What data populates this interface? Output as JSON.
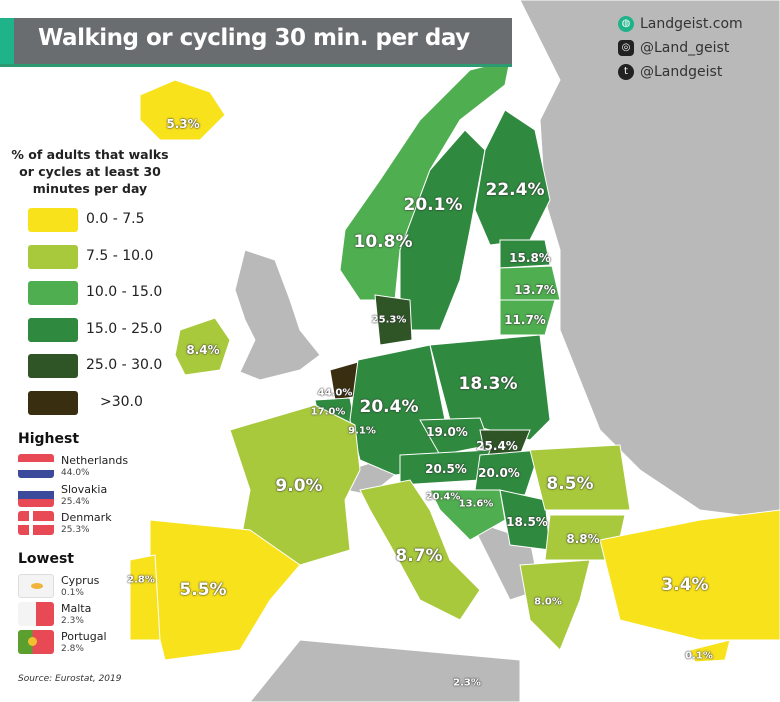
{
  "title": "Walking or cycling 30 min. per day",
  "social": [
    {
      "icon": "globe-icon",
      "label": "Landgeist.com"
    },
    {
      "icon": "instagram-icon",
      "label": "@Land_geist"
    },
    {
      "icon": "twitter-icon",
      "label": "@Landgeist"
    }
  ],
  "legend": {
    "title": "% of adults that walks or cycles at least 30 minutes per day",
    "items": [
      {
        "label": "0.0  -  7.5",
        "color": "#f8e21c"
      },
      {
        "label": "7.5  - 10.0",
        "color": "#a9c93c"
      },
      {
        "label": "10.0 - 15.0",
        "color": "#4fae50"
      },
      {
        "label": "15.0 - 25.0",
        "color": "#2f8a3f"
      },
      {
        "label": "25.0 - 30.0",
        "color": "#2f5527"
      },
      {
        "label": ">30.0",
        "color": "#3a2e10"
      }
    ]
  },
  "highest": {
    "title": "Highest",
    "items": [
      {
        "country": "Netherlands",
        "value": "44.0%"
      },
      {
        "country": "Slovakia",
        "value": "25.4%"
      },
      {
        "country": "Denmark",
        "value": "25.3%"
      }
    ]
  },
  "lowest": {
    "title": "Lowest",
    "items": [
      {
        "country": "Cyprus",
        "value": "0.1%"
      },
      {
        "country": "Malta",
        "value": "2.3%"
      },
      {
        "country": "Portugal",
        "value": "2.8%"
      }
    ]
  },
  "source": "Source: Eurostat, 2019",
  "map_values": {
    "iceland": "5.3%",
    "norway": "10.8%",
    "sweden": "20.1%",
    "finland": "22.4%",
    "estonia": "15.8%",
    "latvia": "13.7%",
    "lithuania": "11.7%",
    "denmark": "25.3%",
    "ireland": "8.4%",
    "netherlands": "44.0%",
    "belgium": "17.0%",
    "luxembourg": "9.1%",
    "germany": "20.4%",
    "poland": "18.3%",
    "czechia": "19.0%",
    "slovakia": "25.4%",
    "austria": "20.5%",
    "hungary": "20.0%",
    "slovenia": "20.4%",
    "croatia": "13.6%",
    "serbia": "18.5%",
    "romania": "8.5%",
    "bulgaria": "8.8%",
    "greece": "8.0%",
    "france": "9.0%",
    "italy": "8.7%",
    "spain": "5.5%",
    "portugal": "2.8%",
    "turkey": "3.4%",
    "cyprus": "0.1%",
    "malta": "2.3%"
  },
  "colors": {
    "no_data": "#b9b9b9",
    "title_bar": "#6a6d70",
    "accent": "#1fb38a"
  }
}
